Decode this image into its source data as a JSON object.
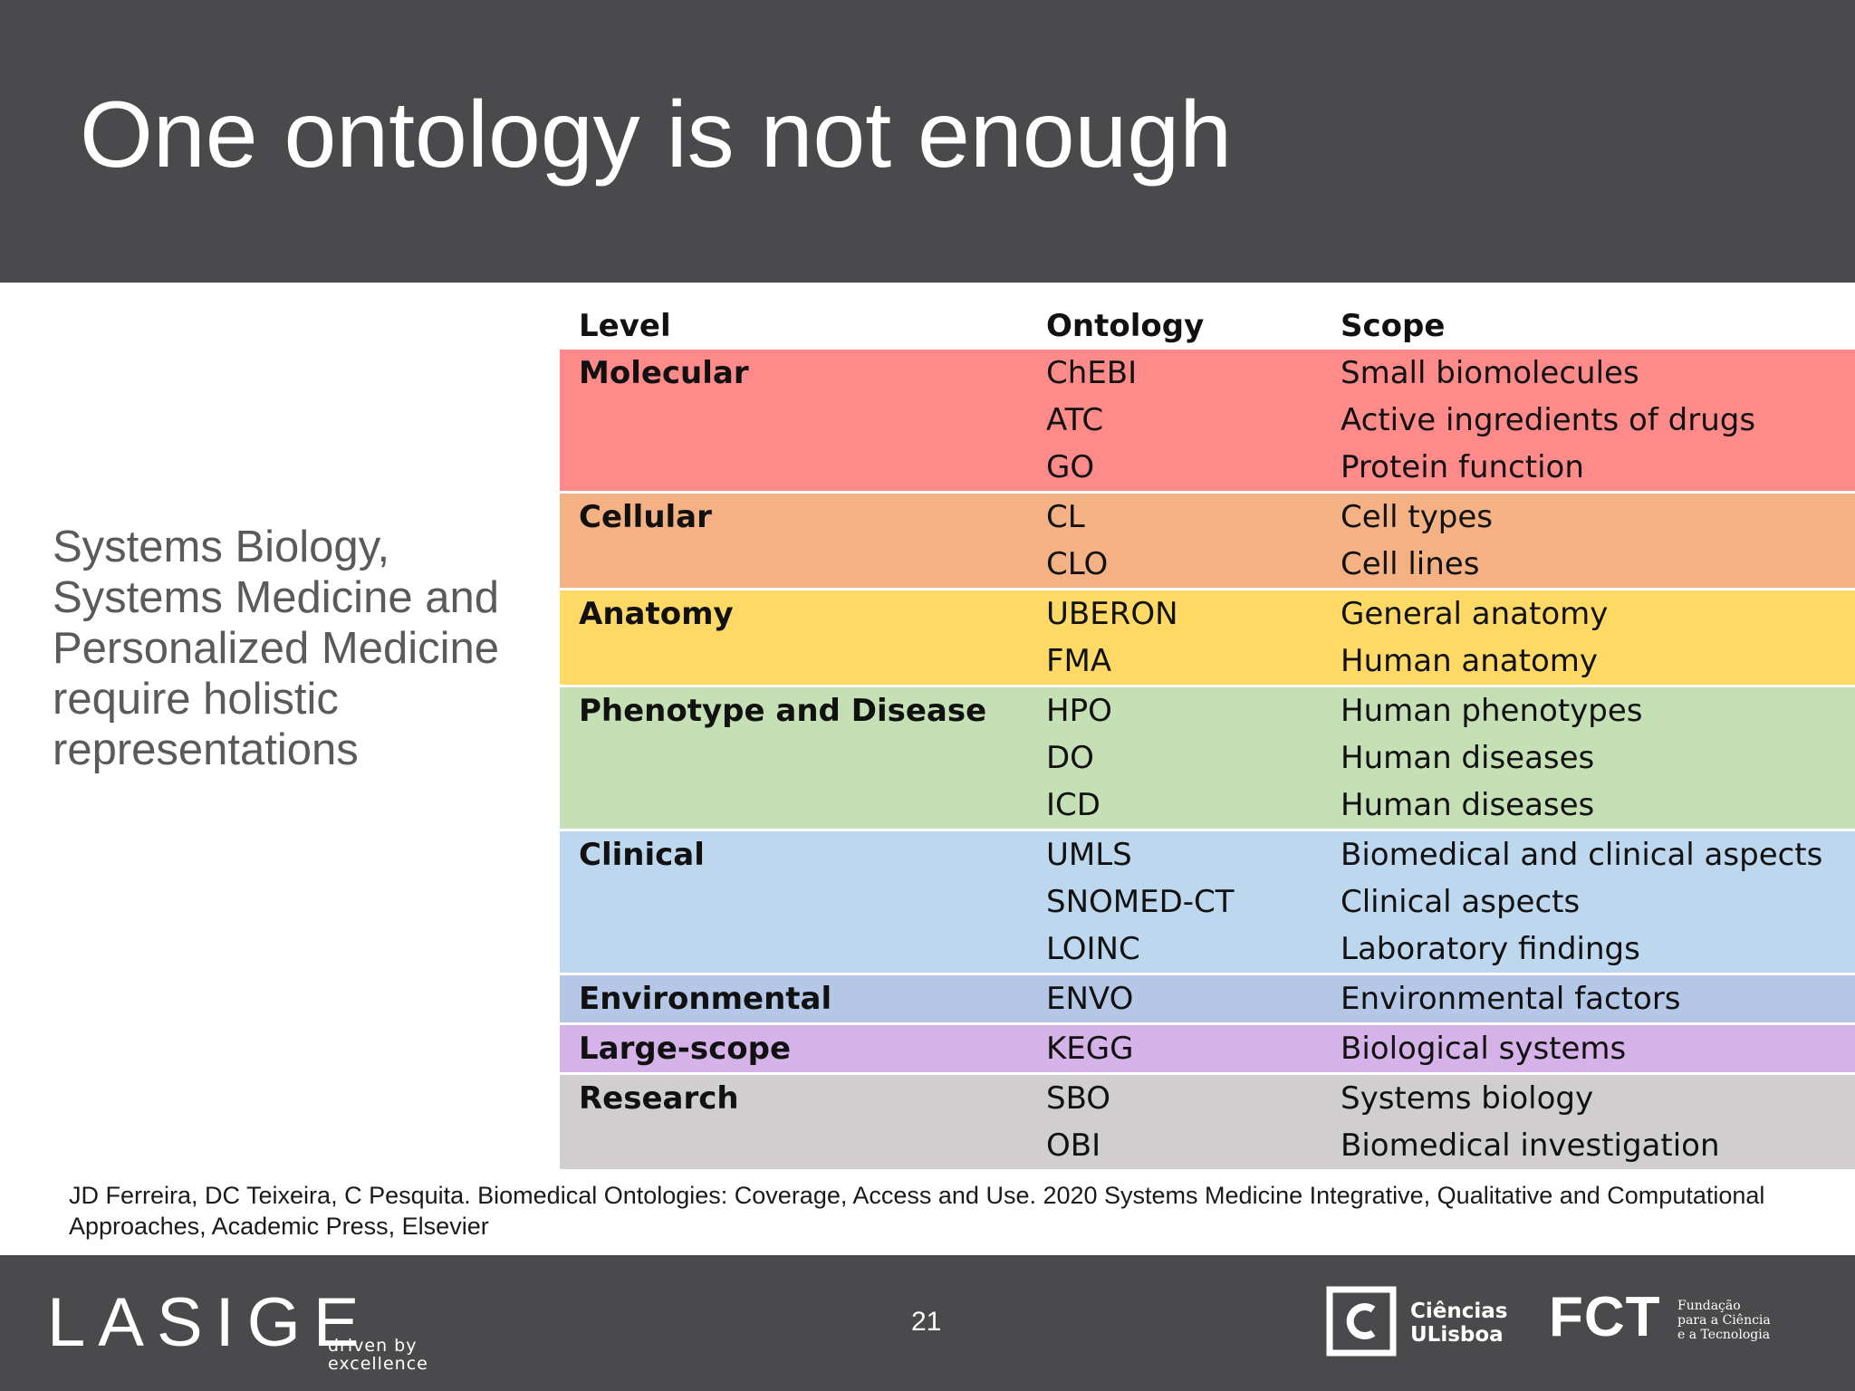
{
  "slide": {
    "title": "One ontology is not enough",
    "side_text": [
      "Systems Biology,",
      "Systems Medicine and",
      "Personalized Medicine",
      "require holistic",
      "representations"
    ],
    "citation": [
      "JD Ferreira, DC Teixeira, C Pesquita. Biomedical Ontologies: Coverage, Access and Use. 2020 Systems Medicine Integrative, Qualitative and Computational",
      "Approaches, Academic Press, Elsevier"
    ],
    "page_number": "21"
  },
  "table": {
    "headers": {
      "level": "Level",
      "ontology": "Ontology",
      "scope": "Scope"
    },
    "groups": [
      {
        "level": "Molecular",
        "color": "#ff8a8a",
        "rows": [
          {
            "ontology": "ChEBI",
            "scope": "Small biomolecules"
          },
          {
            "ontology": "ATC",
            "scope": "Active ingredients of drugs"
          },
          {
            "ontology": "GO",
            "scope": "Protein function"
          }
        ]
      },
      {
        "level": "Cellular",
        "color": "#f4b183",
        "rows": [
          {
            "ontology": "CL",
            "scope": "Cell types"
          },
          {
            "ontology": "CLO",
            "scope": "Cell lines"
          }
        ]
      },
      {
        "level": "Anatomy",
        "color": "#ffd966",
        "rows": [
          {
            "ontology": "UBERON",
            "scope": "General anatomy"
          },
          {
            "ontology": "FMA",
            "scope": "Human anatomy"
          }
        ]
      },
      {
        "level": "Phenotype and Disease",
        "color": "#c5e0b4",
        "rows": [
          {
            "ontology": "HPO",
            "scope": "Human phenotypes"
          },
          {
            "ontology": "DO",
            "scope": "Human diseases"
          },
          {
            "ontology": "ICD",
            "scope": "Human diseases"
          }
        ]
      },
      {
        "level": "Clinical",
        "color": "#bdd7ee",
        "rows": [
          {
            "ontology": "UMLS",
            "scope": "Biomedical and clinical aspects"
          },
          {
            "ontology": "SNOMED-CT",
            "scope": "Clinical aspects"
          },
          {
            "ontology": "LOINC",
            "scope": "Laboratory findings"
          }
        ]
      },
      {
        "level": "Environmental",
        "color": "#b4c7e7",
        "rows": [
          {
            "ontology": "ENVO",
            "scope": "Environmental factors"
          }
        ]
      },
      {
        "level": "Large-scope",
        "color": "#d5b3e8",
        "rows": [
          {
            "ontology": "KEGG",
            "scope": "Biological systems"
          }
        ]
      },
      {
        "level": "Research",
        "color": "#d0cece",
        "rows": [
          {
            "ontology": "SBO",
            "scope": "Systems biology"
          },
          {
            "ontology": "OBI",
            "scope": "Biomedical investigation"
          }
        ]
      }
    ]
  },
  "footer": {
    "lasige_logo": "LASIGE",
    "lasige_tagline": [
      "driven by",
      "excellence"
    ],
    "ciencias_icon": "ciencias-c-icon",
    "ciencias_text": [
      "Ciências",
      "ULisboa"
    ],
    "fct_logo": "FCT",
    "fct_text": [
      "Fundação",
      "para a Ciência",
      "e a Tecnologia"
    ]
  }
}
